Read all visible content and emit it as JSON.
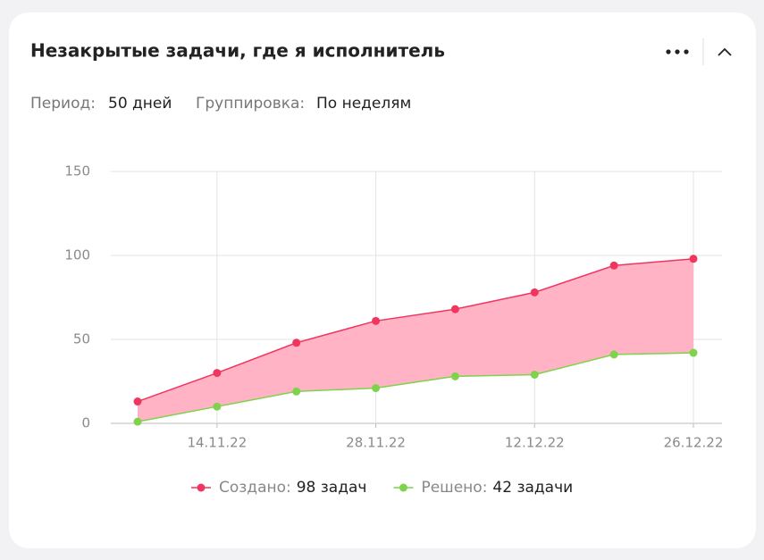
{
  "widget": {
    "title": "Незакрытые задачи, где я исполнитель",
    "period_label": "Период:",
    "period_value": "50 дней",
    "grouping_label": "Группировка:",
    "grouping_value": "По неделям"
  },
  "chart_data": {
    "type": "area",
    "categories": [
      null,
      "14.11.22",
      null,
      "28.11.22",
      null,
      "12.12.22",
      null,
      "26.12.22"
    ],
    "series": [
      {
        "name": "Создано:",
        "legend_value": "98 задач",
        "color": "#f0365f",
        "fill": "#ffb3c4",
        "values": [
          13,
          30,
          48,
          61,
          68,
          78,
          94,
          98
        ]
      },
      {
        "name": "Решено:",
        "legend_value": "42 задачи",
        "color": "#7fd24c",
        "values": [
          1,
          10,
          19,
          21,
          28,
          29,
          41,
          42
        ]
      }
    ],
    "ylim": [
      0,
      150
    ],
    "yticks": [
      0,
      50,
      100,
      150
    ],
    "grid": true
  }
}
